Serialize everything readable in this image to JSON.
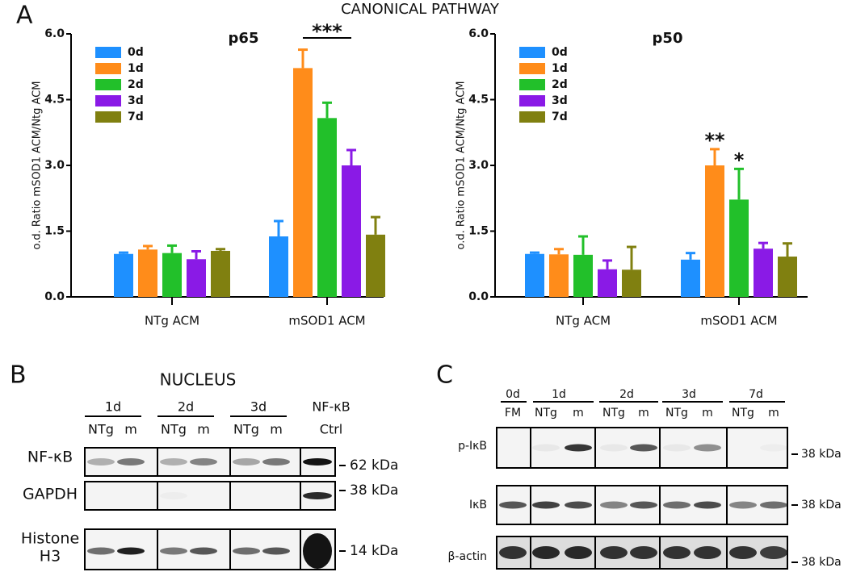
{
  "figure_title": "CANONICAL PATHWAY",
  "panel_labels": [
    "A",
    "B",
    "C"
  ],
  "chart_data": [
    {
      "type": "bar",
      "title": "p65",
      "y_label": "o.d. Ratio mSOD1 ACM/Ntg ACM",
      "categories": [
        "NTg ACM",
        "mSOD1 ACM"
      ],
      "series": [
        {
          "name": "0d",
          "color": "#1e90ff",
          "values": [
            0.98,
            1.38
          ],
          "errors": [
            0.03,
            0.35
          ]
        },
        {
          "name": "1d",
          "color": "#ff8c1a",
          "values": [
            1.08,
            5.22
          ],
          "errors": [
            0.08,
            0.42
          ]
        },
        {
          "name": "2d",
          "color": "#22c02a",
          "values": [
            1.0,
            4.08
          ],
          "errors": [
            0.17,
            0.35
          ]
        },
        {
          "name": "3d",
          "color": "#8a1ae6",
          "values": [
            0.86,
            3.0
          ],
          "errors": [
            0.18,
            0.35
          ]
        },
        {
          "name": "7d",
          "color": "#808010",
          "values": [
            1.05,
            1.42
          ],
          "errors": [
            0.04,
            0.4
          ]
        }
      ],
      "ylim": [
        0,
        6
      ],
      "yticks": [
        {
          "value": 0,
          "label": "0.0"
        },
        {
          "value": 1.5,
          "label": "1.5"
        },
        {
          "value": 3,
          "label": "3.0"
        },
        {
          "value": 4.5,
          "label": "4.5"
        },
        {
          "value": 6,
          "label": "6.0"
        }
      ],
      "legend": "upper left",
      "annotations": [
        "***"
      ]
    },
    {
      "type": "bar",
      "title": "p50",
      "y_label": "o.d. Ratio mSOD1 ACM/Ntg ACM",
      "categories": [
        "NTg ACM",
        "mSOD1 ACM"
      ],
      "series": [
        {
          "name": "0d",
          "color": "#1e90ff",
          "values": [
            0.98,
            0.85
          ],
          "errors": [
            0.03,
            0.15
          ]
        },
        {
          "name": "1d",
          "color": "#ff8c1a",
          "values": [
            0.97,
            3.0
          ],
          "errors": [
            0.12,
            0.37
          ]
        },
        {
          "name": "2d",
          "color": "#22c02a",
          "values": [
            0.96,
            2.22
          ],
          "errors": [
            0.42,
            0.7
          ]
        },
        {
          "name": "3d",
          "color": "#8a1ae6",
          "values": [
            0.63,
            1.1
          ],
          "errors": [
            0.2,
            0.13
          ]
        },
        {
          "name": "7d",
          "color": "#808010",
          "values": [
            0.62,
            0.92
          ],
          "errors": [
            0.52,
            0.3
          ]
        }
      ],
      "ylim": [
        0,
        6
      ],
      "yticks": [
        {
          "value": 0,
          "label": "0.0"
        },
        {
          "value": 1.5,
          "label": "1.5"
        },
        {
          "value": 3,
          "label": "3.0"
        },
        {
          "value": 4.5,
          "label": "4.5"
        },
        {
          "value": 6,
          "label": "6.0"
        }
      ],
      "legend": "upper left",
      "annotations": [
        "**",
        "*"
      ]
    }
  ],
  "blot_b": {
    "title": "NUCLEUS",
    "groups": [
      "1d",
      "2d",
      "3d",
      "NF-κB"
    ],
    "lanes": [
      "NTg",
      "m",
      "NTg",
      "m",
      "NTg",
      "m",
      "Ctrl"
    ],
    "rows": [
      "NF-κB",
      "GAPDH",
      "Histone",
      "H3"
    ],
    "markers": [
      "62 kDa",
      "38 kDa",
      "14 kDa"
    ]
  },
  "blot_c": {
    "groups": [
      "0d",
      "1d",
      "2d",
      "3d",
      "7d"
    ],
    "lanes": [
      "FM",
      "NTg",
      "m",
      "NTg",
      "m",
      "NTg",
      "m",
      "NTg",
      "m"
    ],
    "rows": [
      "p-IκB",
      "IκB",
      "β-actin"
    ],
    "markers": [
      "38 kDa",
      "38 kDa",
      "38 kDa"
    ]
  }
}
